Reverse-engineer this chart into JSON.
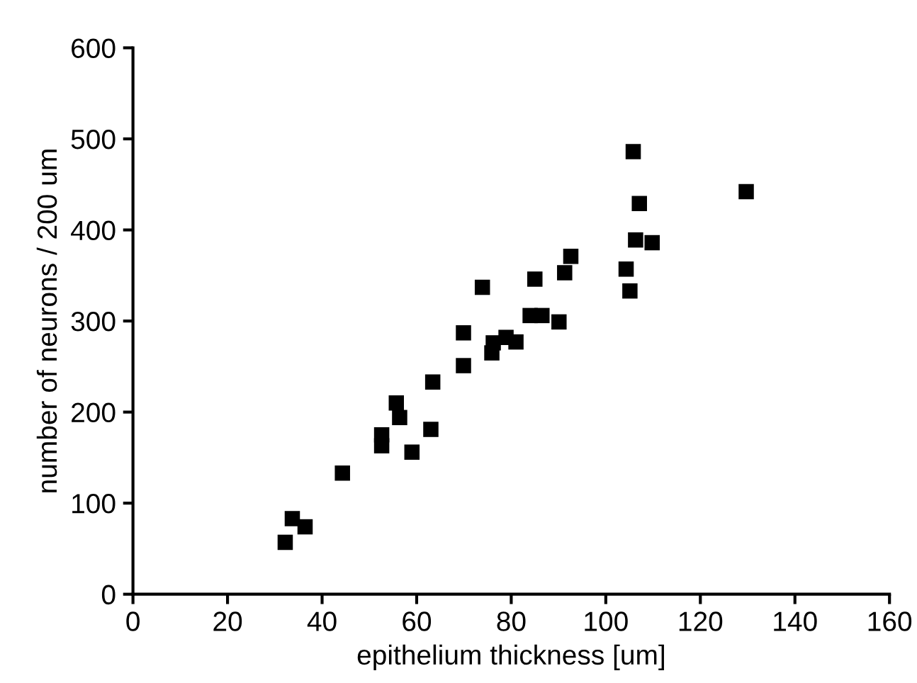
{
  "chart_data": {
    "type": "scatter",
    "xlabel": "epithelium thickness [um]",
    "ylabel": "number of neurons / 200 um",
    "x": [
      32.2,
      33.7,
      36.4,
      44.3,
      52.6,
      52.6,
      55.7,
      56.4,
      59,
      63,
      63.4,
      69.9,
      69.9,
      73.9,
      75.9,
      76.2,
      78.9,
      81,
      84,
      85,
      86.5,
      90.1,
      91.3,
      92.6,
      104.3,
      105.1,
      105.8,
      106.3,
      107.1,
      109.8,
      129.7
    ],
    "values": [
      57,
      83,
      74,
      133,
      175,
      163,
      210,
      194,
      156,
      181,
      233,
      251,
      287,
      337,
      265,
      276,
      282,
      277,
      306,
      346,
      306,
      299,
      353,
      371,
      357,
      333,
      486,
      389,
      429,
      386,
      442
    ],
    "color": "#000000",
    "marker": "square",
    "grid": false,
    "legend": false,
    "xlim": [
      0,
      160
    ],
    "xticks": [
      0,
      20,
      40,
      60,
      80,
      100,
      120,
      140,
      160
    ],
    "ylim": [
      0,
      600
    ],
    "yticks": [
      0,
      100,
      200,
      300,
      400,
      500,
      600
    ]
  }
}
